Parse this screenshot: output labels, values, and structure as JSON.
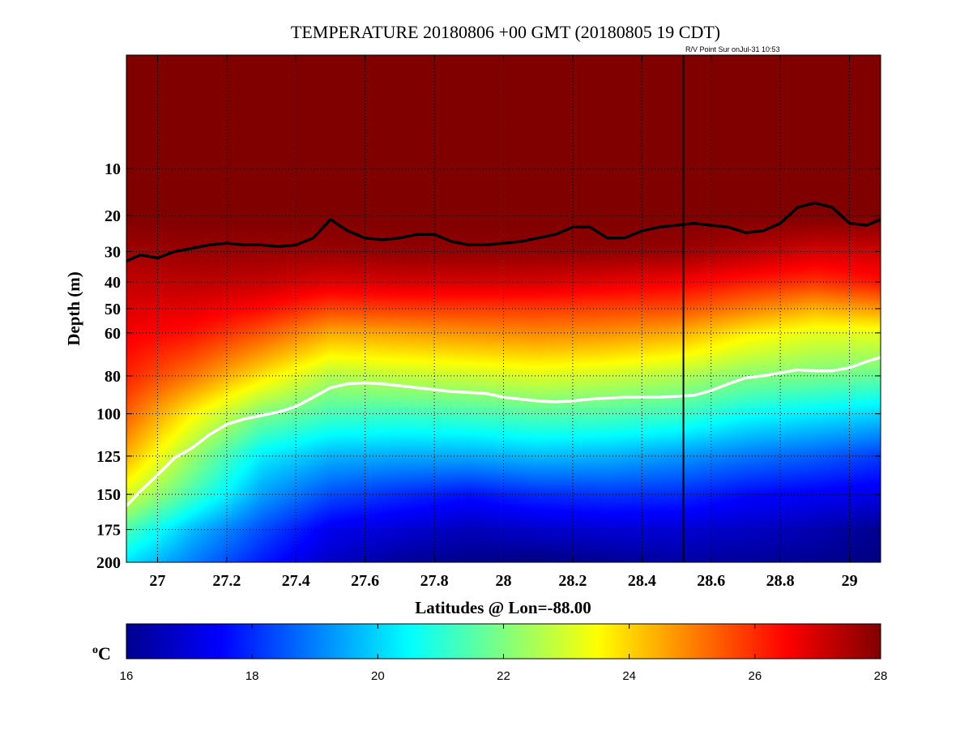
{
  "chart_data": {
    "type": "heatmap",
    "title": "TEMPERATURE 20180806 +00 GMT (20180805 19 CDT)",
    "annotation": "R/V Point Sur onJul-31 10:53",
    "xlabel": "Latitudes @ Lon=-88.00",
    "ylabel": "Depth (m)",
    "xlim": [
      26.91,
      29.09
    ],
    "ylim": [
      0,
      200
    ],
    "y_scale": "sqrt",
    "grid": "dotted",
    "x_ticks": [
      27,
      27.2,
      27.4,
      27.6,
      27.8,
      28,
      28.2,
      28.4,
      28.6,
      28.8,
      29
    ],
    "x_tick_labels": [
      "27",
      "27.2",
      "27.4",
      "27.6",
      "27.8",
      "28",
      "28.2",
      "28.4",
      "28.6",
      "28.8",
      "29"
    ],
    "y_ticks": [
      10,
      20,
      30,
      40,
      50,
      60,
      80,
      100,
      125,
      150,
      175,
      200
    ],
    "y_tick_labels": [
      "10",
      "20",
      "30",
      "40",
      "50",
      "60",
      "80",
      "100",
      "125",
      "150",
      "175",
      "200"
    ],
    "colorbar": {
      "unit": "oC",
      "range": [
        16,
        28
      ],
      "ticks": [
        "16",
        "18",
        "20",
        "22",
        "24",
        "26",
        "28"
      ],
      "colormap": "jet"
    },
    "vertical_line_x": 28.52,
    "black_contour": {
      "x": [
        26.91,
        26.95,
        27.0,
        27.05,
        27.1,
        27.15,
        27.2,
        27.25,
        27.3,
        27.35,
        27.4,
        27.45,
        27.5,
        27.55,
        27.6,
        27.65,
        27.7,
        27.75,
        27.8,
        27.85,
        27.9,
        27.95,
        28.0,
        28.05,
        28.1,
        28.15,
        28.2,
        28.25,
        28.3,
        28.35,
        28.4,
        28.45,
        28.5,
        28.55,
        28.6,
        28.65,
        28.7,
        28.75,
        28.8,
        28.85,
        28.9,
        28.95,
        29.0,
        29.05,
        29.09
      ],
      "depth": [
        33,
        31,
        32,
        30,
        29,
        28,
        27.5,
        28,
        28,
        28.5,
        28,
        26,
        21,
        24,
        26,
        26.5,
        26,
        25,
        25,
        27,
        28,
        28,
        27.5,
        27,
        26,
        25,
        23,
        23,
        26,
        26,
        24,
        23,
        22.5,
        22,
        22.5,
        23,
        24.5,
        24,
        22,
        18,
        17,
        18,
        22,
        22.5,
        21
      ]
    },
    "white_contour": {
      "x": [
        26.91,
        26.95,
        27.0,
        27.05,
        27.1,
        27.15,
        27.2,
        27.25,
        27.3,
        27.35,
        27.4,
        27.45,
        27.5,
        27.55,
        27.6,
        27.65,
        27.7,
        27.75,
        27.8,
        27.85,
        27.9,
        27.95,
        28.0,
        28.05,
        28.1,
        28.15,
        28.2,
        28.25,
        28.3,
        28.35,
        28.4,
        28.45,
        28.5,
        28.55,
        28.6,
        28.65,
        28.7,
        28.75,
        28.8,
        28.85,
        28.9,
        28.95,
        29.0,
        29.05,
        29.09
      ],
      "depth": [
        158,
        148,
        137,
        126,
        120,
        112,
        106,
        103,
        101,
        99,
        96,
        91,
        86,
        84,
        83.5,
        84,
        85,
        86,
        87,
        88,
        88.5,
        89,
        91,
        92,
        93,
        93.5,
        93,
        92,
        91.5,
        91,
        91,
        91,
        90.5,
        90,
        87.5,
        84,
        81,
        80,
        78.5,
        77,
        77.5,
        77.5,
        76,
        73,
        71
      ]
    },
    "temperature_field": {
      "x": [
        26.91,
        27.1,
        27.3,
        27.5,
        27.7,
        27.9,
        28.1,
        28.3,
        28.5,
        28.7,
        28.9,
        29.09
      ],
      "depth": [
        0,
        20,
        30,
        40,
        50,
        60,
        80,
        100,
        125,
        150,
        175,
        200
      ],
      "values": [
        [
          28.0,
          28.0,
          28.0,
          28.0,
          28.0,
          28.0,
          28.0,
          28.0,
          28.0,
          28.0,
          28.0,
          28.0
        ],
        [
          28.0,
          28.0,
          28.0,
          28.0,
          28.0,
          28.0,
          28.0,
          28.0,
          28.0,
          28.0,
          28.0,
          28.0
        ],
        [
          27.6,
          27.7,
          27.7,
          27.7,
          27.8,
          27.8,
          27.8,
          27.8,
          27.7,
          27.4,
          27.0,
          27.1
        ],
        [
          27.2,
          27.3,
          27.2,
          26.9,
          27.0,
          27.0,
          27.0,
          26.8,
          26.6,
          26.2,
          25.9,
          26.3
        ],
        [
          26.9,
          26.8,
          26.4,
          25.7,
          25.8,
          25.8,
          25.8,
          25.7,
          25.6,
          25.0,
          24.4,
          24.7
        ],
        [
          26.6,
          26.3,
          25.5,
          24.5,
          24.6,
          24.8,
          24.9,
          24.8,
          24.5,
          23.7,
          23.2,
          23.2
        ],
        [
          26.1,
          25.1,
          23.8,
          22.6,
          22.8,
          22.9,
          23.1,
          22.9,
          22.6,
          22.1,
          21.9,
          21.7
        ],
        [
          25.4,
          23.6,
          22.0,
          21.3,
          21.2,
          21.3,
          21.5,
          21.4,
          21.2,
          20.6,
          20.3,
          20.0
        ],
        [
          24.4,
          22.3,
          20.3,
          19.6,
          19.5,
          19.5,
          19.7,
          19.6,
          19.3,
          18.9,
          18.6,
          18.2
        ],
        [
          23.1,
          21.3,
          19.4,
          18.4,
          18.0,
          17.7,
          18.0,
          18.1,
          18.0,
          17.6,
          17.4,
          17.2
        ],
        [
          21.4,
          19.7,
          18.4,
          17.3,
          17.0,
          16.7,
          16.9,
          17.0,
          17.0,
          16.8,
          16.6,
          16.2
        ],
        [
          20.2,
          19.0,
          17.8,
          16.8,
          16.3,
          16.1,
          16.0,
          16.2,
          16.4,
          16.3,
          16.2,
          16.0
        ]
      ]
    }
  }
}
